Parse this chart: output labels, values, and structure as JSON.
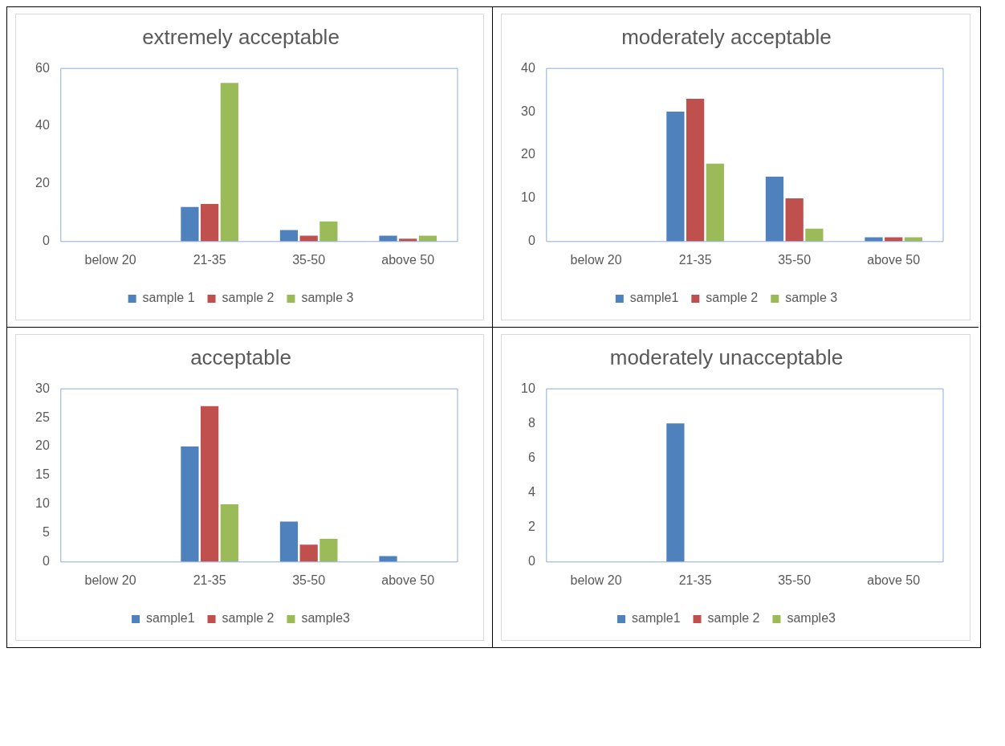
{
  "chart_data": [
    {
      "type": "bar",
      "title": "extremely acceptable",
      "categories": [
        "below 20",
        "21-35",
        "35-50",
        "above 50"
      ],
      "ylim": [
        0,
        60
      ],
      "yticks": [
        0,
        20,
        40,
        60
      ],
      "grid": false,
      "legend": "bottom",
      "series": [
        {
          "name": "sample 1",
          "color": "#4f81bd",
          "values": [
            0,
            12,
            4,
            2
          ]
        },
        {
          "name": "sample 2",
          "color": "#c0504d",
          "values": [
            0,
            13,
            2,
            1
          ]
        },
        {
          "name": "sample 3",
          "color": "#9bbb59",
          "values": [
            0,
            55,
            7,
            2
          ]
        }
      ]
    },
    {
      "type": "bar",
      "title": "moderately acceptable",
      "categories": [
        "below 20",
        "21-35",
        "35-50",
        "above 50"
      ],
      "ylim": [
        0,
        40
      ],
      "yticks": [
        0,
        10,
        20,
        30,
        40
      ],
      "grid": false,
      "legend": "bottom",
      "series": [
        {
          "name": "sample1",
          "color": "#4f81bd",
          "values": [
            0,
            30,
            15,
            1
          ]
        },
        {
          "name": "sample 2",
          "color": "#c0504d",
          "values": [
            0,
            33,
            10,
            1
          ]
        },
        {
          "name": "sample 3",
          "color": "#9bbb59",
          "values": [
            0,
            18,
            3,
            1
          ]
        }
      ]
    },
    {
      "type": "bar",
      "title": "acceptable",
      "categories": [
        "below 20",
        "21-35",
        "35-50",
        "above 50"
      ],
      "ylim": [
        0,
        30
      ],
      "yticks": [
        0,
        5,
        10,
        15,
        20,
        25,
        30
      ],
      "grid": false,
      "legend": "bottom",
      "series": [
        {
          "name": "sample1",
          "color": "#4f81bd",
          "values": [
            0,
            20,
            7,
            1
          ]
        },
        {
          "name": "sample 2",
          "color": "#c0504d",
          "values": [
            0,
            27,
            3,
            0
          ]
        },
        {
          "name": "sample3",
          "color": "#9bbb59",
          "values": [
            0,
            10,
            4,
            0
          ]
        }
      ]
    },
    {
      "type": "bar",
      "title": "moderately unacceptable",
      "categories": [
        "below 20",
        "21-35",
        "35-50",
        "above 50"
      ],
      "ylim": [
        0,
        10
      ],
      "yticks": [
        0,
        2,
        4,
        6,
        8,
        10
      ],
      "grid": false,
      "legend": "bottom",
      "series": [
        {
          "name": "sample1",
          "color": "#4f81bd",
          "values": [
            0,
            8,
            0,
            0
          ]
        },
        {
          "name": "sample 2",
          "color": "#c0504d",
          "values": [
            0,
            0,
            0,
            0
          ]
        },
        {
          "name": "sample3",
          "color": "#9bbb59",
          "values": [
            0,
            0,
            0,
            0
          ]
        }
      ]
    }
  ]
}
